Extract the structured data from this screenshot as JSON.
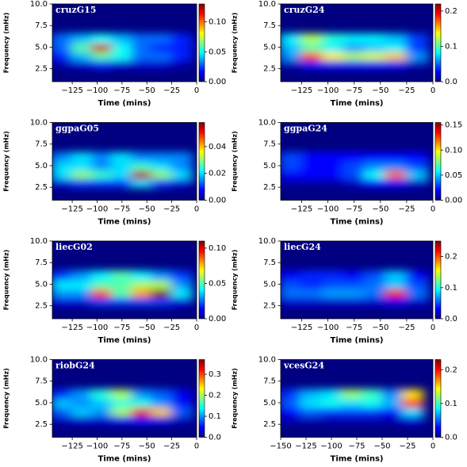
{
  "chart_data": [
    {
      "type": "heatmap",
      "title": "cruzG15",
      "colormap": "jet",
      "xlabel": "Time (mins)",
      "ylabel": "Frequency (mHz)",
      "x": [
        -135,
        -115,
        -95,
        -75,
        -55,
        -35,
        -15
      ],
      "y": [
        3,
        4,
        5,
        6
      ],
      "z": [
        [
          0.005,
          0.01,
          0.02,
          0.01,
          0.01,
          0.01,
          0.005
        ],
        [
          0.02,
          0.04,
          0.06,
          0.05,
          0.03,
          0.03,
          0.02
        ],
        [
          0.03,
          0.06,
          0.12,
          0.05,
          0.03,
          0.02,
          0.02
        ],
        [
          0.03,
          0.04,
          0.05,
          0.04,
          0.03,
          0.03,
          0.02
        ]
      ],
      "xlim": [
        -145,
        0
      ],
      "xticks": [
        {
          "value": -125,
          "label": "−125"
        },
        {
          "value": -100,
          "label": "−100"
        },
        {
          "value": -75,
          "label": "−75"
        },
        {
          "value": -50,
          "label": "−50"
        },
        {
          "value": -25,
          "label": "−25"
        },
        0
      ],
      "ylim": [
        1,
        10
      ],
      "yticks": [
        2.5,
        {
          "value": 5,
          "label": "5.0"
        },
        7.5,
        {
          "value": 10,
          "label": "10.0"
        }
      ],
      "clim": [
        0,
        0.13
      ],
      "cticks": [
        {
          "value": 0,
          "label": "0.00"
        },
        0.05,
        {
          "value": 0.1,
          "label": "0.10"
        }
      ]
    },
    {
      "type": "heatmap",
      "title": "cruzG24",
      "colormap": "jet",
      "xlabel": "Time (mins)",
      "ylabel": "Frequency (mHz)",
      "x": [
        -135,
        -115,
        -95,
        -75,
        -55,
        -35,
        -15
      ],
      "y": [
        3,
        4,
        5,
        6
      ],
      "z": [
        [
          0.01,
          0.03,
          0.03,
          0.03,
          0.03,
          0.03,
          0.01
        ],
        [
          0.06,
          0.18,
          0.14,
          0.12,
          0.13,
          0.15,
          0.06
        ],
        [
          0.07,
          0.1,
          0.08,
          0.06,
          0.07,
          0.08,
          0.04
        ],
        [
          0.08,
          0.12,
          0.09,
          0.08,
          0.08,
          0.07,
          0.04
        ]
      ],
      "xlim": [
        -145,
        0
      ],
      "xticks": [
        {
          "value": -125,
          "label": "−125"
        },
        {
          "value": -100,
          "label": "−100"
        },
        {
          "value": -75,
          "label": "−75"
        },
        {
          "value": -50,
          "label": "−50"
        },
        {
          "value": -25,
          "label": "−25"
        },
        0
      ],
      "ylim": [
        1,
        10
      ],
      "yticks": [
        2.5,
        {
          "value": 5,
          "label": "5.0"
        },
        7.5,
        {
          "value": 10,
          "label": "10.0"
        }
      ],
      "clim": [
        0,
        0.22
      ],
      "cticks": [
        {
          "value": 0,
          "label": "0.0"
        },
        0.1,
        0.2
      ]
    },
    {
      "type": "heatmap",
      "title": "ggpaG05",
      "colormap": "jet",
      "xlabel": "Time (mins)",
      "ylabel": "Frequency (mHz)",
      "x": [
        -135,
        -115,
        -95,
        -75,
        -55,
        -35,
        -15
      ],
      "y": [
        3,
        4,
        5,
        6
      ],
      "z": [
        [
          0.005,
          0.01,
          0.01,
          0.01,
          0.02,
          0.01,
          0.005
        ],
        [
          0.02,
          0.03,
          0.025,
          0.02,
          0.055,
          0.03,
          0.02
        ],
        [
          0.02,
          0.02,
          0.015,
          0.02,
          0.025,
          0.02,
          0.015
        ],
        [
          0.015,
          0.02,
          0.015,
          0.02,
          0.015,
          0.015,
          0.015
        ]
      ],
      "xlim": [
        -145,
        0
      ],
      "xticks": [
        {
          "value": -125,
          "label": "−125"
        },
        {
          "value": -100,
          "label": "−100"
        },
        {
          "value": -75,
          "label": "−75"
        },
        {
          "value": -50,
          "label": "−50"
        },
        {
          "value": -25,
          "label": "−25"
        },
        0
      ],
      "ylim": [
        1,
        10
      ],
      "yticks": [
        2.5,
        {
          "value": 5,
          "label": "5.0"
        },
        7.5,
        {
          "value": 10,
          "label": "10.0"
        }
      ],
      "clim": [
        0,
        0.058
      ],
      "cticks": [
        {
          "value": 0,
          "label": "0.00"
        },
        0.02,
        0.04
      ]
    },
    {
      "type": "heatmap",
      "title": "ggpaG24",
      "colormap": "jet",
      "xlabel": "Time (mins)",
      "ylabel": "Frequency (mHz)",
      "x": [
        -135,
        -115,
        -95,
        -75,
        -55,
        -35,
        -15
      ],
      "y": [
        3,
        4,
        5,
        6
      ],
      "z": [
        [
          0.005,
          0.005,
          0.005,
          0.01,
          0.02,
          0.02,
          0.01
        ],
        [
          0.02,
          0.02,
          0.02,
          0.03,
          0.06,
          0.12,
          0.05
        ],
        [
          0.03,
          0.02,
          0.02,
          0.03,
          0.04,
          0.04,
          0.03
        ],
        [
          0.03,
          0.02,
          0.02,
          0.02,
          0.02,
          0.02,
          0.02
        ]
      ],
      "xlim": [
        -145,
        0
      ],
      "xticks": [
        {
          "value": -125,
          "label": "−125"
        },
        {
          "value": -100,
          "label": "−100"
        },
        {
          "value": -75,
          "label": "−75"
        },
        {
          "value": -50,
          "label": "−50"
        },
        {
          "value": -25,
          "label": "−25"
        },
        0
      ],
      "ylim": [
        1,
        10
      ],
      "yticks": [
        2.5,
        {
          "value": 5,
          "label": "5.0"
        },
        7.5,
        {
          "value": 10,
          "label": "10.0"
        }
      ],
      "clim": [
        0,
        0.155
      ],
      "cticks": [
        {
          "value": 0,
          "label": "0.00"
        },
        0.05,
        {
          "value": 0.1,
          "label": "0.10"
        },
        0.15
      ]
    },
    {
      "type": "heatmap",
      "title": "liecG02",
      "colormap": "jet",
      "xlabel": "Time (mins)",
      "ylabel": "Frequency (mHz)",
      "x": [
        -135,
        -115,
        -95,
        -75,
        -55,
        -35,
        -15
      ],
      "y": [
        3,
        4,
        5,
        6
      ],
      "z": [
        [
          0.01,
          0.01,
          0.02,
          0.02,
          0.02,
          0.02,
          0.01
        ],
        [
          0.03,
          0.03,
          0.09,
          0.05,
          0.08,
          0.11,
          0.04
        ],
        [
          0.04,
          0.04,
          0.05,
          0.05,
          0.06,
          0.06,
          0.03
        ],
        [
          0.02,
          0.03,
          0.04,
          0.05,
          0.04,
          0.03,
          0.02
        ]
      ],
      "xlim": [
        -145,
        0
      ],
      "xticks": [
        {
          "value": -125,
          "label": "−125"
        },
        {
          "value": -100,
          "label": "−100"
        },
        {
          "value": -75,
          "label": "−75"
        },
        {
          "value": -50,
          "label": "−50"
        },
        {
          "value": -25,
          "label": "−25"
        },
        0
      ],
      "ylim": [
        1,
        10
      ],
      "yticks": [
        2.5,
        {
          "value": 5,
          "label": "5.0"
        },
        7.5,
        {
          "value": 10,
          "label": "10.0"
        }
      ],
      "clim": [
        0,
        0.11
      ],
      "cticks": [
        {
          "value": 0,
          "label": "0.00"
        },
        0.05,
        {
          "value": 0.1,
          "label": "0.10"
        }
      ]
    },
    {
      "type": "heatmap",
      "title": "liecG24",
      "colormap": "jet",
      "xlabel": "Time (mins)",
      "ylabel": "Frequency (mHz)",
      "x": [
        -135,
        -115,
        -95,
        -75,
        -55,
        -35,
        -15
      ],
      "y": [
        3,
        4,
        5,
        6
      ],
      "z": [
        [
          0.02,
          0.02,
          0.02,
          0.02,
          0.02,
          0.03,
          0.02
        ],
        [
          0.06,
          0.06,
          0.07,
          0.07,
          0.06,
          0.22,
          0.06
        ],
        [
          0.05,
          0.04,
          0.05,
          0.05,
          0.06,
          0.08,
          0.05
        ],
        [
          0.03,
          0.04,
          0.04,
          0.03,
          0.05,
          0.08,
          0.03
        ]
      ],
      "xlim": [
        -145,
        0
      ],
      "xticks": [
        {
          "value": -125,
          "label": "−125"
        },
        {
          "value": -100,
          "label": "−100"
        },
        {
          "value": -75,
          "label": "−75"
        },
        {
          "value": -50,
          "label": "−50"
        },
        {
          "value": -25,
          "label": "−25"
        },
        0
      ],
      "ylim": [
        1,
        10
      ],
      "yticks": [
        2.5,
        {
          "value": 5,
          "label": "5.0"
        },
        7.5,
        {
          "value": 10,
          "label": "10.0"
        }
      ],
      "clim": [
        0,
        0.25
      ],
      "cticks": [
        {
          "value": 0,
          "label": "0.0"
        },
        0.1,
        0.2
      ]
    },
    {
      "type": "heatmap",
      "title": "riobG24",
      "colormap": "jet",
      "xlabel": "Time (mins)",
      "ylabel": "Frequency (mHz)",
      "x": [
        -135,
        -115,
        -95,
        -75,
        -55,
        -35,
        -15
      ],
      "y": [
        3,
        4,
        5,
        6
      ],
      "z": [
        [
          0.02,
          0.03,
          0.03,
          0.04,
          0.05,
          0.04,
          0.02
        ],
        [
          0.08,
          0.12,
          0.1,
          0.2,
          0.33,
          0.25,
          0.08
        ],
        [
          0.12,
          0.1,
          0.12,
          0.15,
          0.15,
          0.1,
          0.05
        ],
        [
          0.06,
          0.1,
          0.15,
          0.2,
          0.1,
          0.08,
          0.04
        ]
      ],
      "xlim": [
        -145,
        0
      ],
      "xticks": [
        {
          "value": -125,
          "label": "−125"
        },
        {
          "value": -100,
          "label": "−100"
        },
        {
          "value": -75,
          "label": "−75"
        },
        {
          "value": -50,
          "label": "−50"
        },
        {
          "value": -25,
          "label": "−25"
        },
        0
      ],
      "ylim": [
        1,
        10
      ],
      "yticks": [
        2.5,
        {
          "value": 5,
          "label": "5.0"
        },
        7.5,
        {
          "value": 10,
          "label": "10.0"
        }
      ],
      "clim": [
        0,
        0.37
      ],
      "cticks": [
        {
          "value": 0,
          "label": "0.0"
        },
        0.1,
        0.2,
        0.3
      ]
    },
    {
      "type": "heatmap",
      "title": "vcesG24",
      "colormap": "jet",
      "xlabel": "Time (mins)",
      "ylabel": "Frequency (mHz)",
      "x": [
        -140,
        -120,
        -100,
        -80,
        -60,
        -40,
        -20
      ],
      "y": [
        3,
        4,
        5,
        6
      ],
      "z": [
        [
          0.01,
          0.01,
          0.01,
          0.01,
          0.01,
          0.01,
          0.02
        ],
        [
          0.03,
          0.05,
          0.04,
          0.04,
          0.04,
          0.03,
          0.08
        ],
        [
          0.05,
          0.08,
          0.09,
          0.08,
          0.09,
          0.07,
          0.2
        ],
        [
          0.04,
          0.07,
          0.08,
          0.12,
          0.1,
          0.06,
          0.15
        ]
      ],
      "xlim": [
        -150,
        0
      ],
      "xticks": [
        {
          "value": -150,
          "label": "−150"
        },
        {
          "value": -125,
          "label": "−125"
        },
        {
          "value": -100,
          "label": "−100"
        },
        {
          "value": -75,
          "label": "−75"
        },
        {
          "value": -50,
          "label": "−50"
        },
        {
          "value": -25,
          "label": "−25"
        },
        0
      ],
      "ylim": [
        1,
        10
      ],
      "yticks": [
        2.5,
        {
          "value": 5,
          "label": "5.0"
        },
        7.5,
        {
          "value": 10,
          "label": "10.0"
        }
      ],
      "clim": [
        0,
        0.23
      ],
      "cticks": [
        {
          "value": 0,
          "label": "0.0"
        },
        0.1,
        0.2
      ]
    }
  ]
}
